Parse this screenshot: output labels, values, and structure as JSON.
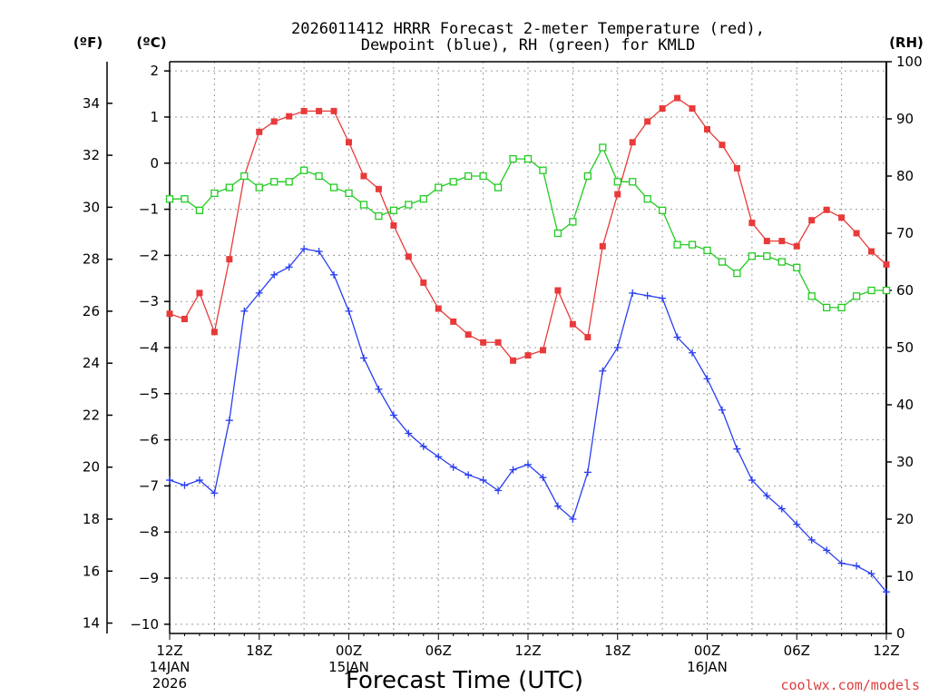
{
  "title_line1": "2026011412 HRRR Forecast 2-meter Temperature (red),",
  "title_line2": "Dewpoint (blue), RH (green) for KMLD",
  "unit_f": "(ºF)",
  "unit_c": "(ºC)",
  "unit_rh": "(RH)",
  "credit": "coolwx.com/models",
  "colors": {
    "temperature": "#e83a3a",
    "dewpoint": "#2a3ef0",
    "rh": "#22cc22"
  },
  "chart_data": {
    "type": "line",
    "xlabel": "Forecast Time (UTC)",
    "x_unit": "forecast hour",
    "x_range": [
      0,
      48
    ],
    "x_ticks": [
      {
        "hour": 0,
        "label": "12Z",
        "sub": [
          "14JAN",
          "2026"
        ]
      },
      {
        "hour": 6,
        "label": "18Z",
        "sub": []
      },
      {
        "hour": 12,
        "label": "00Z",
        "sub": [
          "15JAN"
        ]
      },
      {
        "hour": 18,
        "label": "06Z",
        "sub": []
      },
      {
        "hour": 24,
        "label": "12Z",
        "sub": []
      },
      {
        "hour": 30,
        "label": "18Z",
        "sub": []
      },
      {
        "hour": 36,
        "label": "00Z",
        "sub": [
          "16JAN"
        ]
      },
      {
        "hour": 42,
        "label": "06Z",
        "sub": []
      },
      {
        "hour": 48,
        "label": "12Z",
        "sub": []
      }
    ],
    "y_left_outer": {
      "unit": "ºF",
      "range": [
        13.6,
        35.6
      ],
      "ticks": [
        14,
        16,
        18,
        20,
        22,
        24,
        26,
        28,
        30,
        32,
        34
      ]
    },
    "y_left_inner": {
      "unit": "ºC",
      "range": [
        -10.2,
        2.2
      ],
      "ticks": [
        -10,
        -9,
        -8,
        -7,
        -6,
        -5,
        -4,
        -3,
        -2,
        -1,
        0,
        1,
        2
      ]
    },
    "y_right": {
      "unit": "RH",
      "range": [
        0,
        100
      ],
      "ticks": [
        0,
        10,
        20,
        30,
        40,
        50,
        60,
        70,
        80,
        90,
        100
      ]
    },
    "grid": true,
    "series": [
      {
        "key": "temperature",
        "axis": "degF",
        "marker": "filled-square",
        "values": [
          25.9,
          25.7,
          26.7,
          25.2,
          28.0,
          31.2,
          32.9,
          33.3,
          33.5,
          33.7,
          33.7,
          33.7,
          32.5,
          31.2,
          30.7,
          29.3,
          28.1,
          27.1,
          26.1,
          25.6,
          25.1,
          24.8,
          24.8,
          24.1,
          24.3,
          24.5,
          26.8,
          25.5,
          25.0,
          28.5,
          30.5,
          32.5,
          33.3,
          33.8,
          34.2,
          33.8,
          33.0,
          32.4,
          31.5,
          29.4,
          28.7,
          28.7,
          28.5,
          29.5,
          29.9,
          29.6,
          29.0,
          28.3,
          27.8
        ]
      },
      {
        "key": "dewpoint",
        "axis": "degF",
        "marker": "plus",
        "values": [
          19.5,
          19.3,
          19.5,
          19.0,
          21.8,
          26.0,
          26.7,
          27.4,
          27.7,
          28.4,
          28.3,
          27.4,
          26.0,
          24.2,
          23.0,
          22.0,
          21.3,
          20.8,
          20.4,
          20.0,
          19.7,
          19.5,
          19.1,
          19.9,
          20.1,
          19.6,
          18.5,
          18.0,
          19.8,
          23.7,
          24.6,
          26.7,
          26.6,
          26.5,
          25.0,
          24.4,
          23.4,
          22.2,
          20.7,
          19.5,
          18.9,
          18.4,
          17.8,
          17.2,
          16.8,
          16.3,
          16.2,
          15.9,
          15.2
        ]
      },
      {
        "key": "rh",
        "axis": "rh",
        "marker": "open-square",
        "values": [
          76,
          76,
          74,
          77,
          78,
          80,
          78,
          79,
          79,
          81,
          80,
          78,
          77,
          75,
          73,
          74,
          75,
          76,
          78,
          79,
          80,
          80,
          78,
          83,
          83,
          81,
          70,
          72,
          80,
          85,
          79,
          79,
          76,
          74,
          68,
          68,
          67,
          65,
          63,
          66,
          66,
          65,
          64,
          59,
          57,
          57,
          59,
          60,
          60
        ]
      }
    ]
  }
}
